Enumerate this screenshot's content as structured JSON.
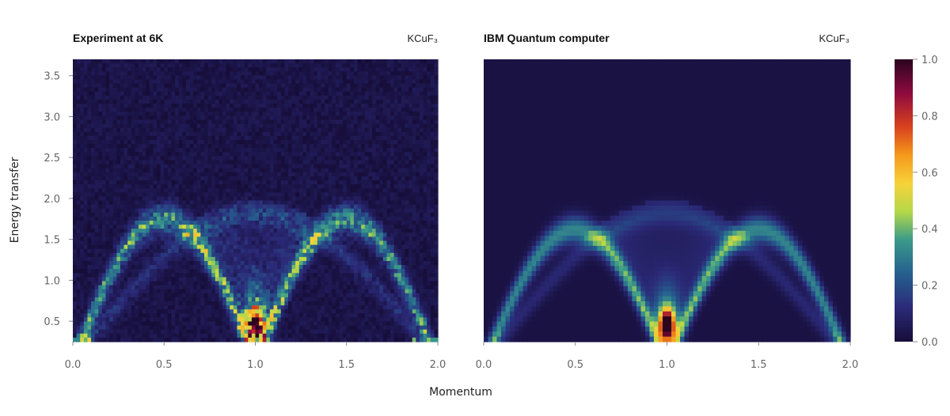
{
  "chart_data": [
    {
      "type": "heatmap",
      "title": "Experiment at 6K",
      "tag": "KCuF₃",
      "xlabel": "Momentum",
      "ylabel": "Energy transfer",
      "xlim": [
        0.0,
        2.0
      ],
      "ylim": [
        0.25,
        3.7
      ],
      "xticks": [
        "0.0",
        "0.5",
        "1.0",
        "1.5",
        "2.0"
      ],
      "yticks": [
        "0.5",
        "1.0",
        "1.5",
        "2.0",
        "2.5",
        "3.0",
        "3.5"
      ],
      "colormap": "inferno-like",
      "value_range": [
        0.0,
        1.0
      ],
      "noisy": true,
      "features": [
        {
          "name": "lower dispersion edge",
          "peak_energy": 1.75,
          "at_momentum": [
            0.5,
            1.5
          ]
        },
        {
          "name": "upper dispersion edge",
          "peak_energy": 1.82,
          "at_momentum": [
            0.5,
            1.5
          ]
        },
        {
          "name": "intensity maximum",
          "momentum": 1.0,
          "energy": 0.45,
          "intensity": 1.0
        }
      ]
    },
    {
      "type": "heatmap",
      "title": "IBM Quantum computer",
      "tag": "KCuF₃",
      "xlabel": "Momentum",
      "ylabel": "",
      "xlim": [
        0.0,
        2.0
      ],
      "ylim": [
        0.25,
        3.7
      ],
      "xticks": [
        "0.0",
        "0.5",
        "1.0",
        "1.5",
        "2.0"
      ],
      "yticks": [],
      "colormap": "inferno-like",
      "value_range": [
        0.0,
        1.0
      ],
      "noisy": false,
      "features": [
        {
          "name": "lower dispersion edge",
          "peak_energy": 1.62,
          "at_momentum": [
            0.5,
            1.5
          ]
        },
        {
          "name": "upper dispersion edge",
          "peak_energy": 1.82,
          "at_momentum": [
            0.5,
            1.5
          ]
        },
        {
          "name": "intensity maximum",
          "momentum": 1.0,
          "energy": 0.45,
          "intensity": 1.0
        }
      ]
    }
  ],
  "colorbar": {
    "ticks": [
      "0.0",
      "0.2",
      "0.4",
      "0.6",
      "0.8",
      "1.0"
    ],
    "range": [
      0.0,
      1.0
    ]
  },
  "shared_xlabel": "Momentum"
}
